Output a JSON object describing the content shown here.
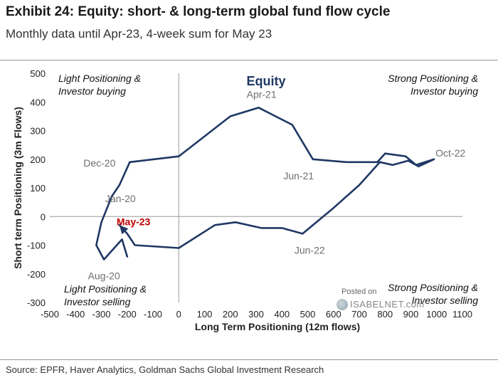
{
  "header": {
    "title": "Exhibit 24: Equity: short- & long-term global fund flow cycle",
    "subtitle": "Monthly data until Apr-23, 4-week sum for May 23"
  },
  "footer": {
    "source": "Source: EPFR, Haver Analytics, Goldman Sachs Global Investment Research"
  },
  "watermark": {
    "posted_on": "Posted on",
    "brand": "ISABELNET.com"
  },
  "chart_data": {
    "type": "line",
    "title": "Equity",
    "xlabel": "Long Term Positioning (12m flows)",
    "ylabel": "Short term Positioning (3m Flows)",
    "xlim": [
      -500,
      1100
    ],
    "ylim": [
      -300,
      500
    ],
    "x_ticks": [
      -500,
      -400,
      -300,
      -200,
      -100,
      0,
      100,
      200,
      300,
      400,
      500,
      600,
      700,
      800,
      900,
      1000,
      1100
    ],
    "y_ticks": [
      -300,
      -200,
      -100,
      0,
      100,
      200,
      300,
      400,
      500
    ],
    "grid": false,
    "line_color": "#1f3864",
    "highlight_color": "#c00000",
    "quadrant_labels": [
      "Light Positioning & Investor buying",
      "Strong Positioning & Investor buying",
      "Light Positioning & Investor selling",
      "Strong Positioning & Investor selling"
    ],
    "series": [
      {
        "points": [
          [
            -190,
            190
          ],
          [
            0,
            210
          ],
          [
            200,
            350
          ],
          [
            310,
            380
          ],
          [
            440,
            320
          ],
          [
            520,
            200
          ],
          [
            650,
            190
          ],
          [
            770,
            190
          ],
          [
            800,
            220
          ],
          [
            880,
            210
          ],
          [
            920,
            180
          ],
          [
            990,
            200
          ],
          [
            930,
            175
          ],
          [
            890,
            195
          ],
          [
            830,
            180
          ],
          [
            780,
            190
          ],
          [
            700,
            110
          ],
          [
            600,
            30
          ],
          [
            480,
            -60
          ],
          [
            400,
            -40
          ],
          [
            320,
            -40
          ],
          [
            220,
            -20
          ],
          [
            140,
            -30
          ],
          [
            0,
            -110
          ],
          [
            -170,
            -100
          ],
          [
            -200,
            -60
          ],
          [
            -230,
            -30
          ]
        ]
      },
      {
        "points": [
          [
            -190,
            190
          ],
          [
            -230,
            110
          ],
          [
            -260,
            70
          ],
          [
            -300,
            -20
          ],
          [
            -320,
            -100
          ],
          [
            -290,
            -150
          ],
          [
            -250,
            -110
          ],
          [
            -220,
            -80
          ],
          [
            -200,
            -140
          ]
        ]
      }
    ],
    "annotations": [
      {
        "text": "Apr-21",
        "x": 310,
        "y": 380
      },
      {
        "text": "Dec-20",
        "x": -190,
        "y": 190
      },
      {
        "text": "Jun-21",
        "x": 520,
        "y": 200
      },
      {
        "text": "Oct-22",
        "x": 990,
        "y": 200
      },
      {
        "text": "Jan-20",
        "x": -230,
        "y": 40
      },
      {
        "text": "Jun-22",
        "x": 480,
        "y": -60
      },
      {
        "text": "Aug-20",
        "x": -290,
        "y": -150
      },
      {
        "text": "May-23",
        "x": -230,
        "y": -30
      }
    ]
  }
}
